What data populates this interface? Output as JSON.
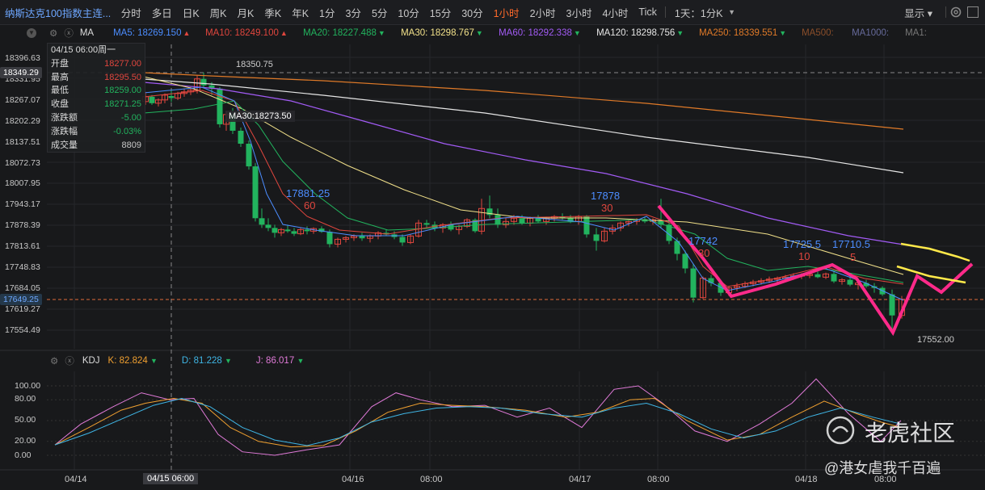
{
  "toolbar": {
    "symbol": "纳斯达克100指数主连...",
    "timeframes": [
      "分时",
      "多日",
      "日K",
      "周K",
      "月K",
      "季K",
      "年K",
      "1分",
      "3分",
      "5分",
      "10分",
      "15分",
      "30分",
      "1小时",
      "2小时",
      "3小时",
      "4小时",
      "Tick"
    ],
    "active_timeframe": "1小时",
    "range_selector": "1天：1分K",
    "display_label": "显示"
  },
  "ma_bar": {
    "name": "MA",
    "items": [
      {
        "label": "MA5: 18269.150",
        "arrow": "▲",
        "color": "#4c8dff"
      },
      {
        "label": "MA10: 18249.100",
        "arrow": "▲",
        "color": "#e0463e"
      },
      {
        "label": "MA20: 18227.488",
        "arrow": "▼",
        "color": "#22b35e"
      },
      {
        "label": "MA30: 18298.767",
        "arrow": "▼",
        "color": "#f2e18a"
      },
      {
        "label": "MA60: 18292.338",
        "arrow": "▼",
        "color": "#a25bf5"
      },
      {
        "label": "MA120: 18298.756",
        "arrow": "▼",
        "color": "#e6e6e6"
      },
      {
        "label": "MA250: 18339.551",
        "arrow": "▼",
        "color": "#e07a28"
      },
      {
        "label": "MA500:",
        "arrow": "",
        "color": "#8a4e2a"
      },
      {
        "label": "MA1000:",
        "arrow": "",
        "color": "#666a9a"
      },
      {
        "label": "MA1:",
        "arrow": "",
        "color": "#777"
      }
    ]
  },
  "price_axis": {
    "labels": [
      "18396.63",
      "18331.95",
      "18267.07",
      "18202.29",
      "18137.51",
      "18072.73",
      "18007.95",
      "17943.17",
      "17878.39",
      "17813.61",
      "17748.83",
      "17684.05",
      "17619.27",
      "17554.49"
    ],
    "highlight_top": "18349.29",
    "highlight_bottom": "17649.25"
  },
  "info_box": {
    "datetime": "04/15 06:00周一",
    "rows": [
      {
        "label": "开盘",
        "value": "18277.00",
        "color": "#e0463e"
      },
      {
        "label": "最高",
        "value": "18295.50",
        "color": "#e0463e"
      },
      {
        "label": "最低",
        "value": "18259.00",
        "color": "#22b35e"
      },
      {
        "label": "收盘",
        "value": "18271.25",
        "color": "#22b35e"
      },
      {
        "label": "涨跌额",
        "value": "-5.00",
        "color": "#22b35e"
      },
      {
        "label": "涨跌幅",
        "value": "-0.03%",
        "color": "#22b35e"
      },
      {
        "label": "成交量",
        "value": "8809",
        "color": "#c8c8c8"
      }
    ]
  },
  "price_annotations": {
    "high_label": "18350.75",
    "low_label": "17552.00",
    "ma30_tooltip": "MA30:18273.50"
  },
  "user_annotations": [
    {
      "price": "17881.25",
      "count": "60"
    },
    {
      "price": "17878",
      "count": "30"
    },
    {
      "price": "17742",
      "count": "30"
    },
    {
      "price": "17725.5",
      "count": "10"
    },
    {
      "price": "17710.5",
      "count": "5"
    }
  ],
  "kdj_bar": {
    "name": "KDJ",
    "k": "K: 82.824",
    "k_arrow": "▼",
    "d": "D: 81.228",
    "d_arrow": "▼",
    "j": "J: 86.017",
    "j_arrow": "▼"
  },
  "kdj_axis": [
    "100.00",
    "80.00",
    "50.00",
    "20.00",
    "0.00"
  ],
  "x_axis": {
    "labels": [
      "04/14",
      "04/16",
      "08:00",
      "04/17",
      "08:00",
      "04/18",
      "08:00"
    ],
    "highlight": "04/15 06:00"
  },
  "watermark": "老虎社区",
  "handle": "@港女虐我千百遍",
  "colors": {
    "up": "#e0463e",
    "down": "#22b35e",
    "annotation": "#ff2a8a"
  }
}
